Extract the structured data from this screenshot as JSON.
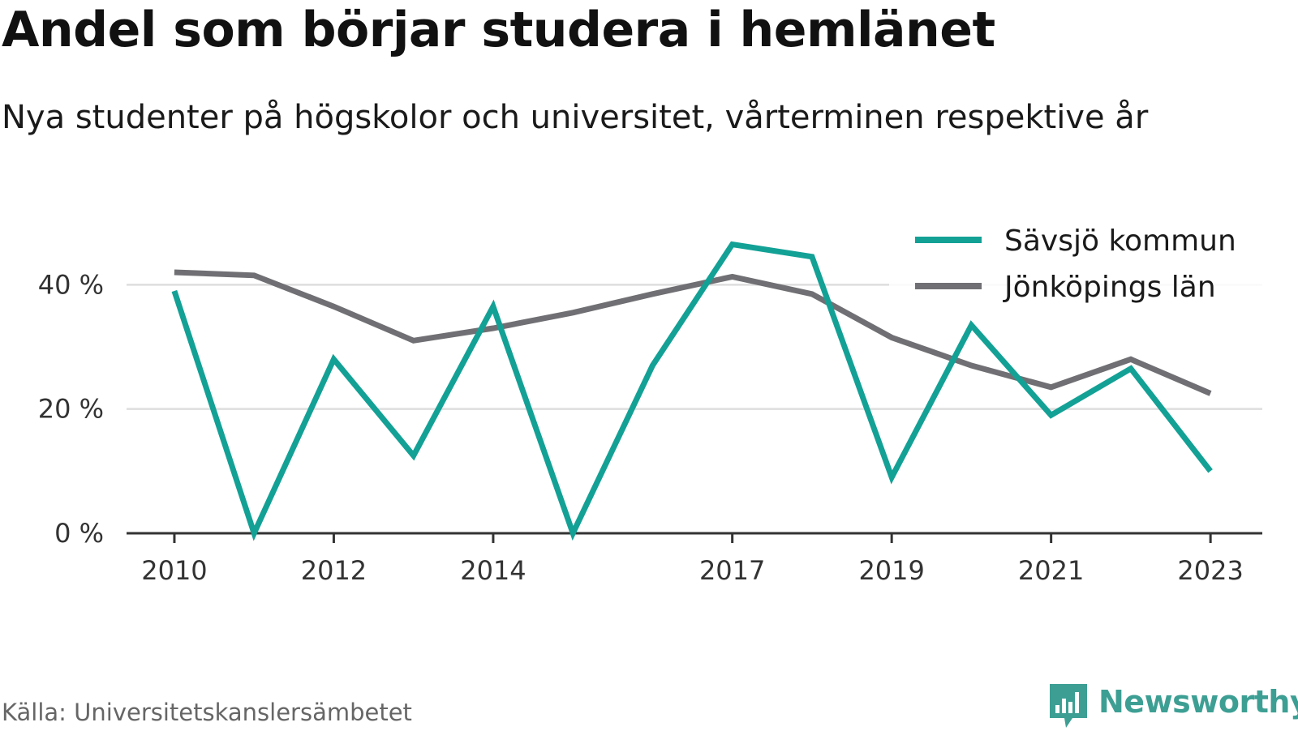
{
  "colors": {
    "savsjo": "#13a196",
    "jonkoping": "#707074",
    "grid": "#dedede",
    "axis": "#333333",
    "brand": "#3d9f94"
  },
  "source": "Källa: Universitetskanslersämbetet",
  "brand": {
    "name": "Newsworthy",
    "icon": "newsworthy-logo-icon"
  },
  "chart_data": {
    "type": "line",
    "title": "Andel som börjar studera i hemlänet",
    "subtitle": "Nya studenter på högskolor och universitet, vårterminen respektive år",
    "xlabel": "",
    "ylabel": "",
    "x": [
      2010,
      2011,
      2012,
      2013,
      2014,
      2015,
      2016,
      2017,
      2018,
      2019,
      2020,
      2021,
      2022,
      2023
    ],
    "x_tick_labels": [
      "2010",
      "2012",
      "2014",
      "2017",
      "2019",
      "2021",
      "2023"
    ],
    "x_ticks": [
      2010,
      2012,
      2014,
      2017,
      2019,
      2021,
      2023
    ],
    "y_ticks": [
      0,
      20,
      40
    ],
    "y_tick_labels": [
      "0 %",
      "20 %",
      "40 %"
    ],
    "xlim": [
      2009.4,
      2023.65
    ],
    "ylim": [
      0,
      48
    ],
    "grid": true,
    "legend_position": "top-right",
    "series": [
      {
        "name": "Sävsjö kommun",
        "color": "#13a196",
        "values": [
          39,
          0,
          28,
          12.5,
          36.5,
          0,
          27,
          46.5,
          44.5,
          9,
          33.5,
          19,
          26.5,
          10
        ]
      },
      {
        "name": "Jönköpings län",
        "color": "#707074",
        "values": [
          42,
          41.5,
          36.5,
          31,
          33,
          35.5,
          38.5,
          41.3,
          38.5,
          31.5,
          27,
          23.5,
          28,
          22.5
        ]
      }
    ]
  }
}
